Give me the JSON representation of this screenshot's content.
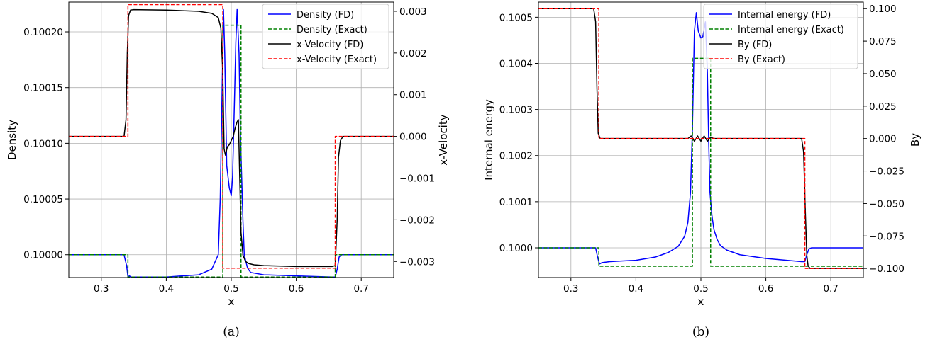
{
  "chart_data": [
    {
      "type": "line",
      "caption": "(a)",
      "xlabel": "x",
      "ylabel": "Density",
      "ylabel_right": "x-Velocity",
      "xlim": [
        0.25,
        0.75
      ],
      "ylim": [
        0.0999795,
        0.1002267
      ],
      "ylim_right": [
        -0.003386,
        0.00322
      ],
      "xticks": [
        0.3,
        0.4,
        0.5,
        0.6,
        0.7
      ],
      "xtick_labels": [
        "0.3",
        "0.4",
        "0.5",
        "0.6",
        "0.7"
      ],
      "yticks": [
        0.1,
        0.10005,
        0.1001,
        0.10015,
        0.1002
      ],
      "ytick_labels": [
        "0.10000",
        "0.10005",
        "0.10010",
        "0.10015",
        "0.10020"
      ],
      "yticks_right": [
        -0.003,
        -0.002,
        -0.001,
        0.0,
        0.001,
        0.002,
        0.003
      ],
      "ytick_labels_right": [
        "−0.003",
        "−0.002",
        "−0.001",
        "0.000",
        "0.001",
        "0.002",
        "0.003"
      ],
      "grid": true,
      "legend_position": "top-right",
      "series": [
        {
          "name": "Density (FD)",
          "axis": "left",
          "color": "#0000ff",
          "style": "solid",
          "x": [
            0.25,
            0.335,
            0.339,
            0.341,
            0.343,
            0.346,
            0.35,
            0.4,
            0.45,
            0.47,
            0.48,
            0.483,
            0.486,
            0.488,
            0.49,
            0.493,
            0.497,
            0.5,
            0.502,
            0.505,
            0.507,
            0.509,
            0.512,
            0.514,
            0.516,
            0.518,
            0.52,
            0.525,
            0.53,
            0.55,
            0.6,
            0.655,
            0.66,
            0.663,
            0.666,
            0.67,
            0.75
          ],
          "y": [
            0.1,
            0.1,
            0.09999,
            0.09998,
            0.099981,
            0.09998,
            0.09998,
            0.09998,
            0.099982,
            0.099987,
            0.1,
            0.10005,
            0.10015,
            0.10022,
            0.10018,
            0.10008,
            0.10006,
            0.100053,
            0.10007,
            0.10014,
            0.10019,
            0.10022,
            0.10018,
            0.10011,
            0.10007,
            0.10003,
            0.1,
            0.099988,
            0.099984,
            0.099982,
            0.099981,
            0.09998,
            0.09998,
            0.099987,
            0.099998,
            0.1,
            0.1
          ]
        },
        {
          "name": "Density (Exact)",
          "axis": "left",
          "color": "#008000",
          "style": "dashed",
          "x": [
            0.25,
            0.341,
            0.341,
            0.487,
            0.487,
            0.515,
            0.515,
            0.66,
            0.66,
            0.75
          ],
          "y": [
            0.1,
            0.1,
            0.09998,
            0.09998,
            0.100206,
            0.100206,
            0.09998,
            0.09998,
            0.1,
            0.1
          ]
        },
        {
          "name": "x-Velocity (FD)",
          "axis": "right",
          "color": "#000000",
          "style": "solid",
          "x": [
            0.25,
            0.335,
            0.338,
            0.34,
            0.342,
            0.345,
            0.35,
            0.4,
            0.45,
            0.47,
            0.48,
            0.484,
            0.487,
            0.489,
            0.491,
            0.494,
            0.497,
            0.5,
            0.503,
            0.506,
            0.509,
            0.511,
            0.513,
            0.515,
            0.518,
            0.522,
            0.527,
            0.535,
            0.55,
            0.6,
            0.655,
            0.66,
            0.663,
            0.665,
            0.668,
            0.672,
            0.75
          ],
          "y": [
            0.0,
            0.0,
            0.0004,
            0.002,
            0.0029,
            0.00303,
            0.00304,
            0.00303,
            0.003,
            0.00295,
            0.00285,
            0.0026,
            0.0015,
            -0.0003,
            -0.00045,
            -0.00025,
            -0.0002,
            -0.0001,
            0.0,
            0.0002,
            0.00035,
            0.0004,
            -0.001,
            -0.0023,
            -0.00285,
            -0.003,
            -0.00305,
            -0.00308,
            -0.0031,
            -0.00312,
            -0.00312,
            -0.0031,
            -0.002,
            -0.0005,
            -0.0001,
            0.0,
            0.0
          ]
        },
        {
          "name": "x-Velocity (Exact)",
          "axis": "right",
          "color": "#ff0000",
          "style": "dashed",
          "x": [
            0.25,
            0.341,
            0.341,
            0.487,
            0.487,
            0.515,
            0.515,
            0.66,
            0.66,
            0.75
          ],
          "y": [
            0.0,
            0.0,
            0.00316,
            0.00316,
            -0.00316,
            -0.00316,
            -0.00316,
            -0.00316,
            0.0,
            0.0
          ]
        }
      ]
    },
    {
      "type": "line",
      "caption": "(b)",
      "xlabel": "x",
      "ylabel": "Internal energy",
      "ylabel_right": "By",
      "xlim": [
        0.25,
        0.75
      ],
      "ylim": [
        0.0999355,
        0.1005328
      ],
      "ylim_right": [
        -0.10702,
        0.10504
      ],
      "xticks": [
        0.3,
        0.4,
        0.5,
        0.6,
        0.7
      ],
      "xtick_labels": [
        "0.3",
        "0.4",
        "0.5",
        "0.6",
        "0.7"
      ],
      "yticks": [
        0.1,
        0.1001,
        0.1002,
        0.1003,
        0.1004,
        0.1005
      ],
      "ytick_labels": [
        "0.1000",
        "0.1001",
        "0.1002",
        "0.1003",
        "0.1004",
        "0.1005"
      ],
      "yticks_right": [
        -0.1,
        -0.075,
        -0.05,
        -0.025,
        0.0,
        0.025,
        0.05,
        0.075,
        0.1
      ],
      "ytick_labels_right": [
        "−0.100",
        "−0.075",
        "−0.050",
        "−0.025",
        "0.000",
        "0.025",
        "0.050",
        "0.075",
        "0.100"
      ],
      "grid": true,
      "legend_position": "top-right",
      "series": [
        {
          "name": "Internal energy (FD)",
          "axis": "left",
          "color": "#0000ff",
          "style": "solid",
          "x": [
            0.25,
            0.338,
            0.341,
            0.344,
            0.348,
            0.36,
            0.4,
            0.43,
            0.45,
            0.465,
            0.475,
            0.48,
            0.484,
            0.487,
            0.49,
            0.493,
            0.496,
            0.5,
            0.503,
            0.507,
            0.51,
            0.512,
            0.514,
            0.517,
            0.52,
            0.525,
            0.53,
            0.54,
            0.56,
            0.6,
            0.655,
            0.66,
            0.663,
            0.666,
            0.67,
            0.75
          ],
          "y": [
            0.1,
            0.1,
            0.09998,
            0.099965,
            0.099968,
            0.09997,
            0.099973,
            0.09998,
            0.09999,
            0.100003,
            0.100025,
            0.100055,
            0.10012,
            0.10026,
            0.10047,
            0.10051,
            0.10047,
            0.100455,
            0.100458,
            0.10049,
            0.10038,
            0.10023,
            0.10012,
            0.10007,
            0.10004,
            0.100018,
            0.100005,
            0.099995,
            0.099985,
            0.099977,
            0.09997,
            0.09997,
            0.099985,
            0.099997,
            0.1,
            0.1
          ]
        },
        {
          "name": "Internal energy (Exact)",
          "axis": "left",
          "color": "#008000",
          "style": "dashed",
          "x": [
            0.25,
            0.343,
            0.343,
            0.487,
            0.487,
            0.515,
            0.515,
            0.66,
            0.66,
            0.75
          ],
          "y": [
            0.1,
            0.1,
            0.09996,
            0.09996,
            0.100411,
            0.100411,
            0.09996,
            0.09996,
            0.09996,
            0.09996
          ]
        },
        {
          "name": "By (FD)",
          "axis": "right",
          "color": "#000000",
          "style": "solid",
          "x": [
            0.25,
            0.335,
            0.338,
            0.34,
            0.342,
            0.345,
            0.35,
            0.4,
            0.48,
            0.485,
            0.49,
            0.495,
            0.5,
            0.505,
            0.51,
            0.515,
            0.52,
            0.6,
            0.655,
            0.658,
            0.661,
            0.663,
            0.665,
            0.668,
            0.672,
            0.75
          ],
          "y": [
            0.1,
            0.1,
            0.09,
            0.04,
            0.004,
            0.0,
            0.0,
            0.0,
            0.0,
            0.002,
            -0.002,
            0.002,
            -0.002,
            0.002,
            -0.002,
            0.001,
            0.0,
            0.0,
            0.0,
            -0.01,
            -0.06,
            -0.09,
            -0.098,
            -0.1,
            -0.1,
            -0.1
          ]
        },
        {
          "name": "By (Exact)",
          "axis": "right",
          "color": "#ff0000",
          "style": "dashed",
          "x": [
            0.25,
            0.343,
            0.343,
            0.66,
            0.66,
            0.75
          ],
          "y": [
            0.1,
            0.1,
            0.0,
            0.0,
            -0.1,
            -0.1
          ]
        }
      ]
    }
  ]
}
